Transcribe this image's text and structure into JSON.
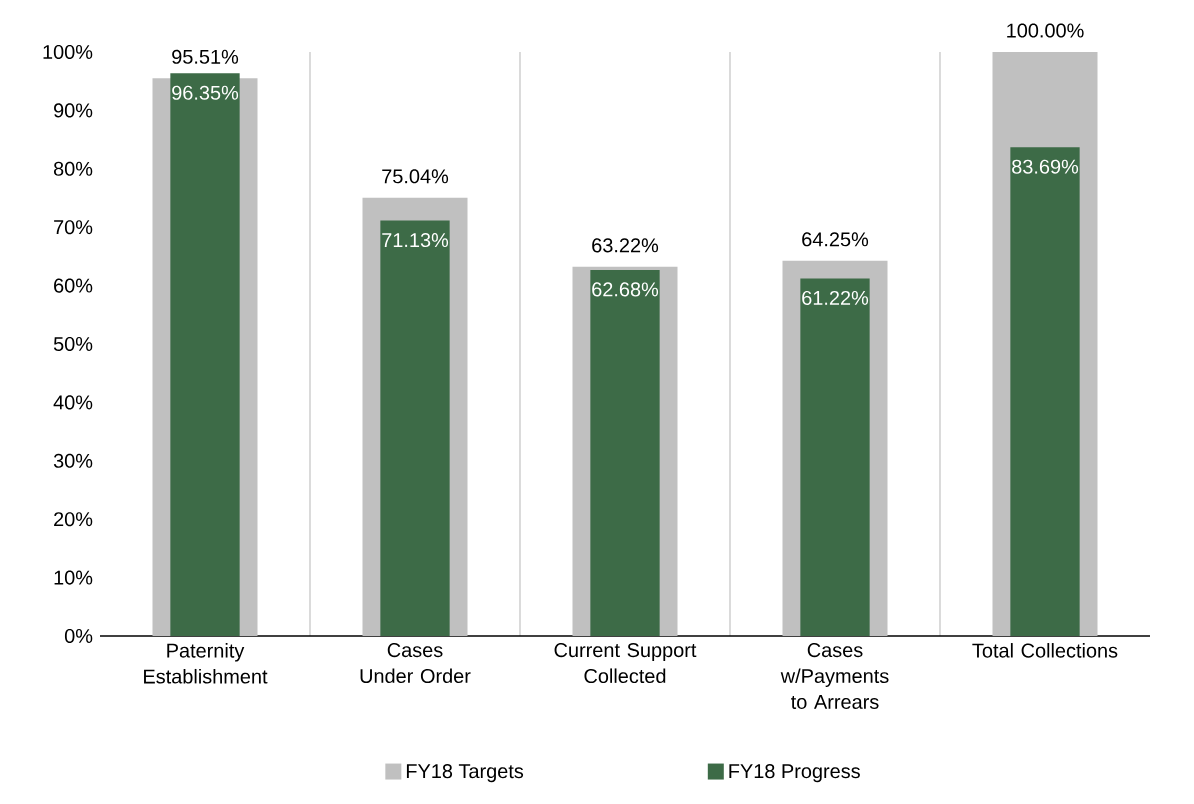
{
  "chart_data": {
    "type": "bar",
    "categories": [
      "Paternity Establishment",
      "Cases Under Order",
      "Current Support Collected",
      "Cases w/Payments to Arrears",
      "Total Collections"
    ],
    "series": [
      {
        "name": "FY18 Targets",
        "color": "#c0c0c0",
        "values": [
          95.51,
          75.04,
          63.22,
          64.25,
          100.0
        ],
        "value_labels": [
          "95.51%",
          "75.04%",
          "63.22%",
          "64.25%",
          "100.00%"
        ]
      },
      {
        "name": "FY18 Progress",
        "color": "#3d6b47",
        "values": [
          96.35,
          71.13,
          62.68,
          61.22,
          83.69
        ],
        "value_labels": [
          "96.35%",
          "71.13%",
          "62.68%",
          "61.22%",
          "83.69%"
        ]
      }
    ],
    "ylim": [
      0,
      100
    ],
    "yticks": [
      {
        "value": 0,
        "label": "0%"
      },
      {
        "value": 10,
        "label": "10%"
      },
      {
        "value": 20,
        "label": "20%"
      },
      {
        "value": 30,
        "label": "30%"
      },
      {
        "value": 40,
        "label": "40%"
      },
      {
        "value": 50,
        "label": "50%"
      },
      {
        "value": 60,
        "label": "60%"
      },
      {
        "value": 70,
        "label": "70%"
      },
      {
        "value": 80,
        "label": "80%"
      },
      {
        "value": 90,
        "label": "90%"
      },
      {
        "value": 100,
        "label": "100%"
      }
    ],
    "grid": "x",
    "legend": "bottom"
  }
}
